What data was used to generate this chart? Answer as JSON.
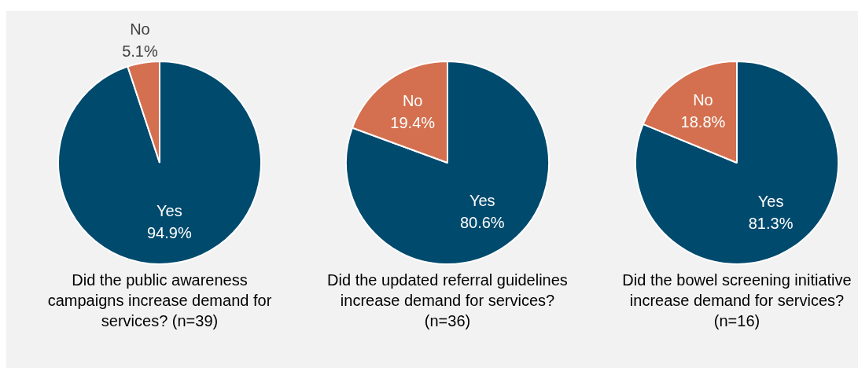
{
  "chart_data": [
    {
      "type": "pie",
      "title": "Did the public awareness campaigns increase demand for services? (n=39)",
      "categories": [
        "Yes",
        "No"
      ],
      "values": [
        94.9,
        5.1
      ],
      "colors": [
        "#004a6e",
        "#d4704f"
      ],
      "value_labels": [
        "94.9%",
        "5.1%"
      ]
    },
    {
      "type": "pie",
      "title": "Did the updated referral guidelines increase demand for services? (n=36)",
      "categories": [
        "Yes",
        "No"
      ],
      "values": [
        80.6,
        19.4
      ],
      "colors": [
        "#004a6e",
        "#d4704f"
      ],
      "value_labels": [
        "80.6%",
        "19.4%"
      ]
    },
    {
      "type": "pie",
      "title": "Did the bowel screening initiative increase demand for services? (n=16)",
      "categories": [
        "Yes",
        "No"
      ],
      "values": [
        81.3,
        18.8
      ],
      "colors": [
        "#004a6e",
        "#d4704f"
      ],
      "value_labels": [
        "81.3%",
        "18.8%"
      ]
    }
  ]
}
